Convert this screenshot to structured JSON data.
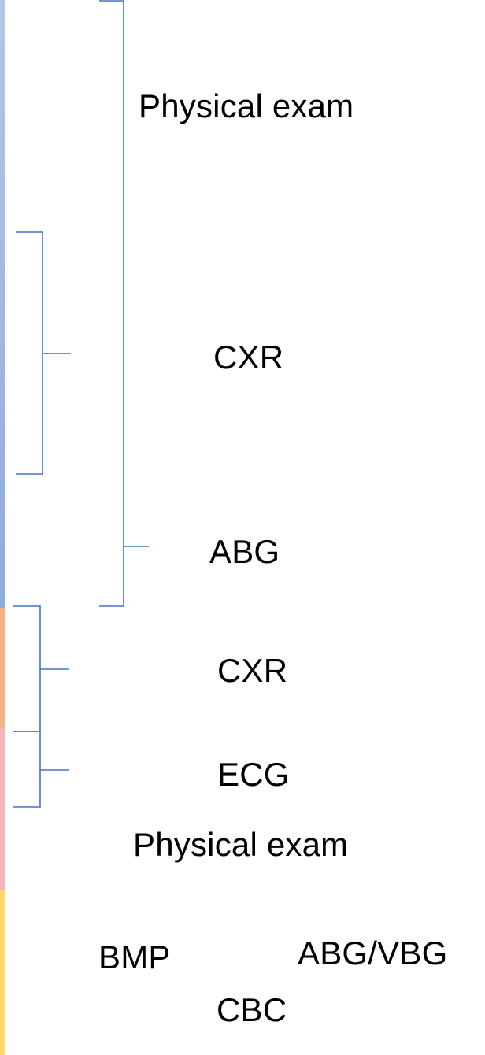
{
  "colors": {
    "bracket": "#4472C4",
    "band_blue": "#8FAADC",
    "band_orange": "#F4B183",
    "band_pink": "#F4B6B8",
    "band_yellow": "#FFD966",
    "text": "#000000"
  },
  "labels": {
    "physical_exam_top": "Physical exam",
    "cxr_top": "CXR",
    "abg": "ABG",
    "cxr_middle": "CXR",
    "ecg": "ECG",
    "physical_exam_bottom": "Physical exam",
    "bmp": "BMP",
    "abg_vbg": "ABG/VBG",
    "cbc": "CBC"
  }
}
